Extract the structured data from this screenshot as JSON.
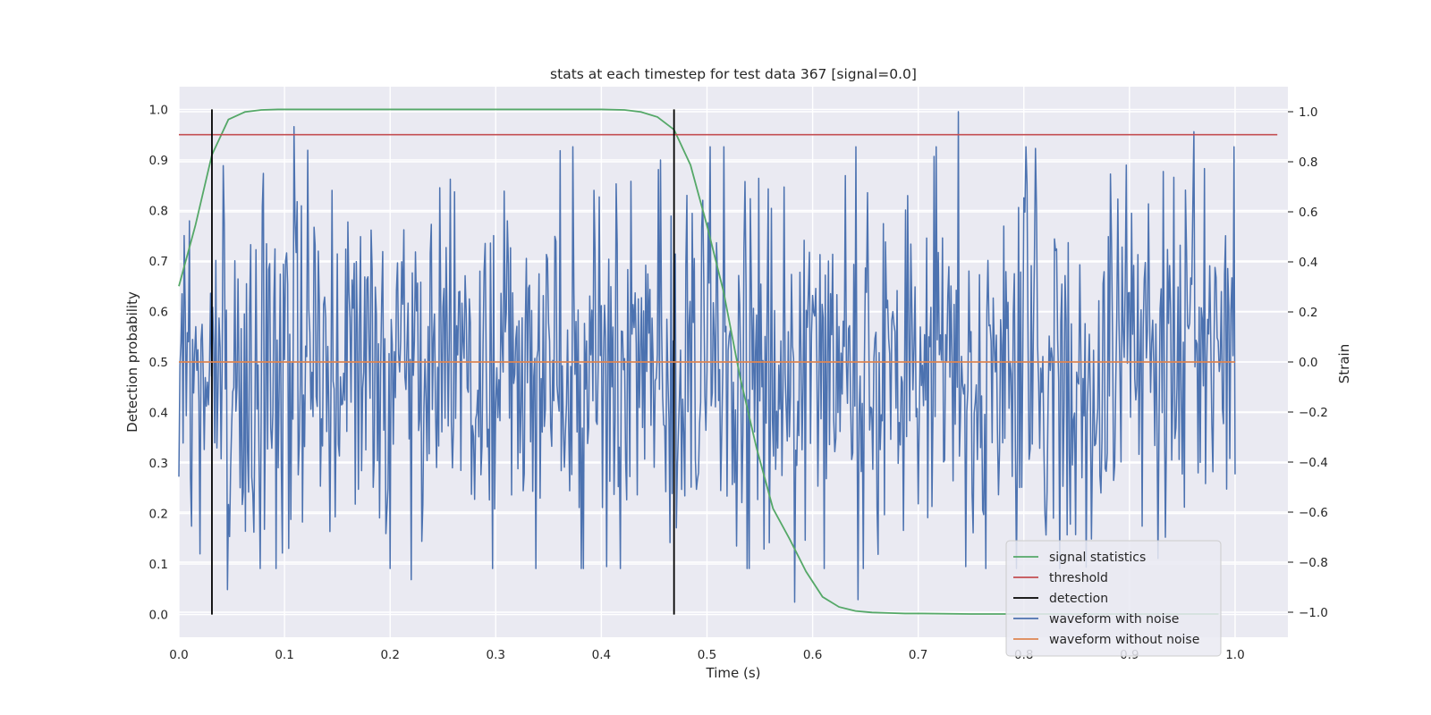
{
  "chart_data": {
    "type": "line",
    "title": "stats at each timestep for test data 367 [signal=0.0]",
    "xlabel": "Time (s)",
    "ylabel_left": "Detection probability",
    "ylabel_right": "Strain",
    "xlim": [
      0.0,
      1.05
    ],
    "ylim_left": [
      -0.045,
      1.045
    ],
    "ylim_right": [
      -1.1,
      1.1
    ],
    "x_ticks": [
      "0.0",
      "0.1",
      "0.2",
      "0.3",
      "0.4",
      "0.5",
      "0.6",
      "0.7",
      "0.8",
      "0.9",
      "1.0"
    ],
    "y_ticks_left": [
      "0.0",
      "0.1",
      "0.2",
      "0.3",
      "0.4",
      "0.5",
      "0.6",
      "0.7",
      "0.8",
      "0.9",
      "1.0"
    ],
    "y_ticks_right": [
      "−1.0",
      "−0.8",
      "−0.6",
      "−0.4",
      "−0.2",
      "0.0",
      "0.2",
      "0.4",
      "0.6",
      "0.8",
      "1.0"
    ],
    "grid": true,
    "legend_position": "lower-right",
    "colors": {
      "background": "#EAEAF2",
      "grid": "#FFFFFF",
      "signal_statistics": "#55A868",
      "threshold": "#C44E52",
      "detection": "#000000",
      "waveform_with_noise": "#4C72B0",
      "waveform_without_noise": "#DD8452"
    },
    "series": [
      {
        "name": "signal statistics",
        "axis": "left",
        "x": [
          0.0,
          0.0156,
          0.0313,
          0.0469,
          0.0625,
          0.0781,
          0.0938,
          0.2,
          0.3,
          0.4,
          0.4219,
          0.4375,
          0.4531,
          0.4688,
          0.4844,
          0.5,
          0.5156,
          0.5313,
          0.5469,
          0.5625,
          0.5781,
          0.5938,
          0.6094,
          0.625,
          0.6406,
          0.6563,
          0.6719,
          0.6875,
          0.7031,
          0.75,
          0.8,
          0.9,
          0.95,
          0.9844
        ],
        "y": [
          0.65,
          0.77,
          0.91,
          0.98,
          0.995,
          0.999,
          1.0,
          1.0,
          1.0,
          1.0,
          0.999,
          0.995,
          0.985,
          0.96,
          0.89,
          0.77,
          0.64,
          0.47,
          0.33,
          0.21,
          0.15,
          0.085,
          0.035,
          0.015,
          0.007,
          0.004,
          0.003,
          0.002,
          0.002,
          0.001,
          0.001,
          0.001,
          0.001,
          0.001
        ]
      },
      {
        "name": "threshold",
        "axis": "left",
        "x": [
          0.0,
          1.04
        ],
        "y": [
          0.95,
          0.95
        ]
      },
      {
        "name": "detection",
        "axis": "left",
        "type": "vlines",
        "x": [
          0.0313,
          0.4688
        ],
        "ymin": 0.0,
        "ymax": 1.0
      },
      {
        "name": "waveform with noise",
        "axis": "right",
        "x_start": 0.0,
        "x_end": 1.0,
        "n_points": 1001,
        "y_range": [
          -0.96,
          1.0
        ],
        "highlighted_values": [
          {
            "x": 0.109,
            "y": 0.94
          },
          {
            "x": 0.738,
            "y": 1.0
          },
          {
            "x": 0.961,
            "y": 0.92
          },
          {
            "x": 0.583,
            "y": -0.96
          },
          {
            "x": 0.643,
            "y": -0.95
          },
          {
            "x": 0.046,
            "y": -0.91
          },
          {
            "x": 0.22,
            "y": -0.87
          }
        ]
      },
      {
        "name": "waveform without noise",
        "axis": "right",
        "x": [
          0.0,
          1.0
        ],
        "y": [
          0.0,
          0.0
        ]
      }
    ],
    "legend": [
      {
        "label": "signal statistics",
        "color": "#55A868"
      },
      {
        "label": "threshold",
        "color": "#C44E52"
      },
      {
        "label": "detection",
        "color": "#000000"
      },
      {
        "label": "waveform with noise",
        "color": "#4C72B0"
      },
      {
        "label": "waveform without noise",
        "color": "#DD8452"
      }
    ]
  }
}
